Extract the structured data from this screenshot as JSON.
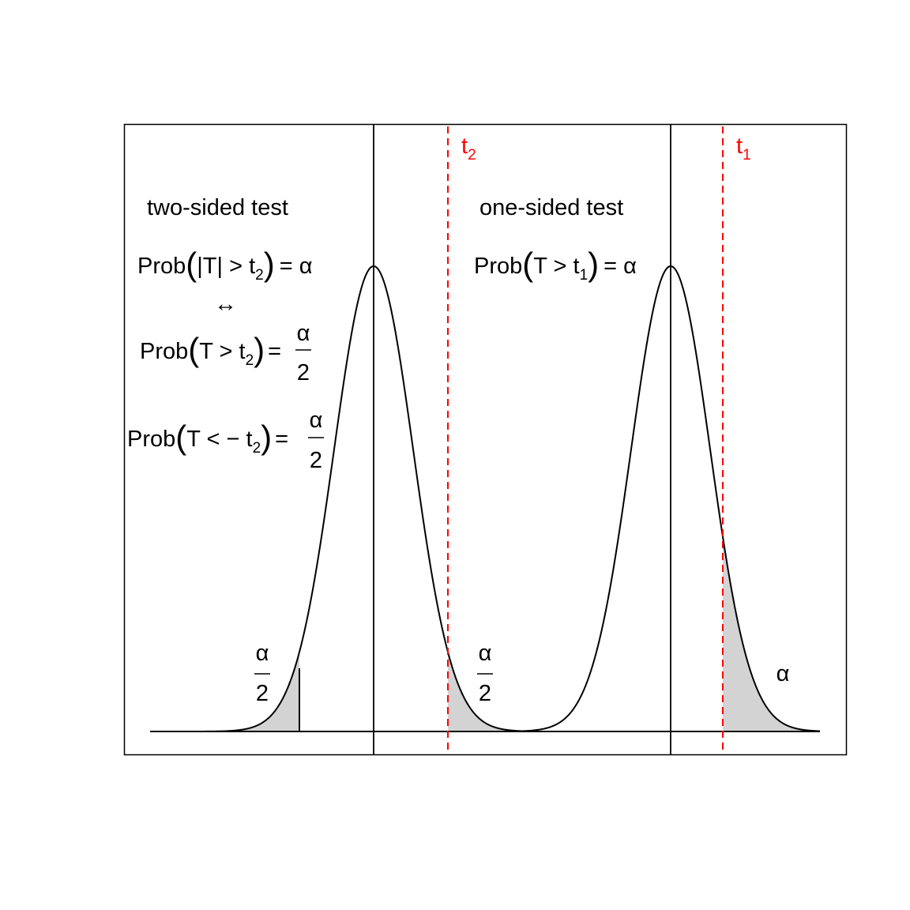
{
  "colors": {
    "curve": "#000000",
    "threshold_line": "#ff0000",
    "tail_fill": "#d3d3d3",
    "frame": "#000000"
  },
  "left_panel": {
    "heading": "two-sided test",
    "eq_abs": {
      "lhs_open": "Prob",
      "inner": "|T| > t",
      "sub": "2",
      "rhs": "= α"
    },
    "equivalence_symbol": "↔",
    "eq_upper": {
      "lhs": "Prob",
      "inner": "T > t",
      "sub": "2",
      "eq": "=",
      "numerator": "α",
      "denominator": "2"
    },
    "eq_lower": {
      "lhs": "Prob",
      "inner": "T < − t",
      "sub": "2",
      "eq": "=",
      "numerator": "α",
      "denominator": "2"
    },
    "left_tail_label": {
      "numerator": "α",
      "denominator": "2"
    },
    "right_tail_label": {
      "numerator": "α",
      "denominator": "2"
    },
    "threshold_label": {
      "base": "t",
      "sub": "2"
    }
  },
  "right_panel": {
    "heading": "one-sided test",
    "eq": {
      "lhs": "Prob",
      "inner": "T > t",
      "sub": "1",
      "rhs": "= α"
    },
    "tail_label": "α",
    "threshold_label": {
      "base": "t",
      "sub": "1"
    }
  }
}
